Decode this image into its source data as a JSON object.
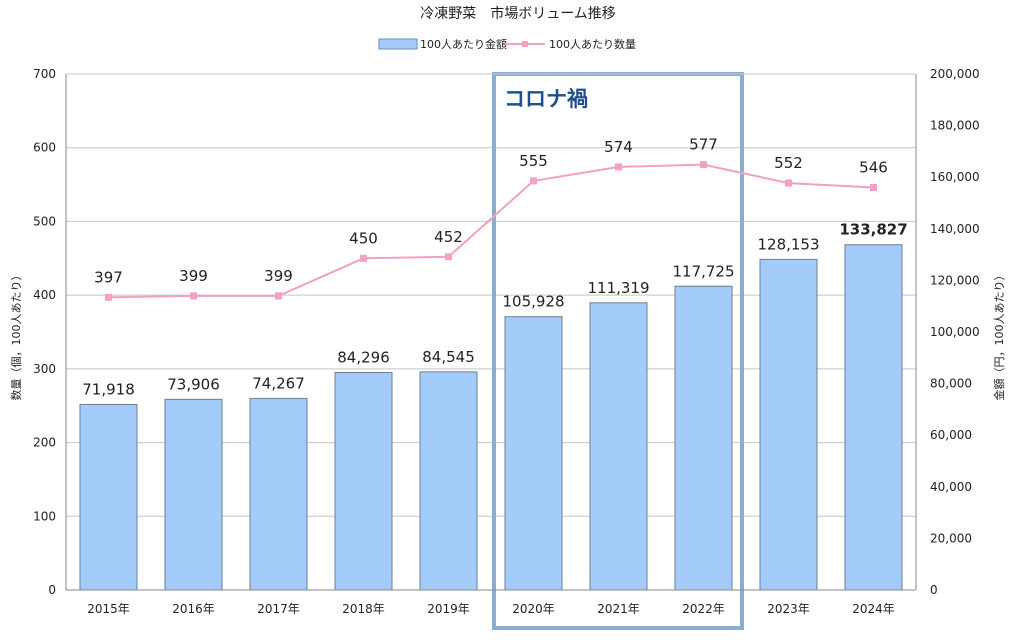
{
  "chart_data": {
    "type": "bar",
    "title": "冷凍野菜　市場ボリューム推移",
    "categories": [
      "2015年",
      "2016年",
      "2017年",
      "2018年",
      "2019年",
      "2020年",
      "2021年",
      "2022年",
      "2023年",
      "2024年"
    ],
    "series": [
      {
        "name": "100人あたり金額",
        "type": "bar",
        "axis": "right",
        "values": [
          71918,
          73906,
          74267,
          84296,
          84545,
          105928,
          111319,
          117725,
          128153,
          133827
        ],
        "labels": [
          "71,918",
          "73,906",
          "74,267",
          "84,296",
          "84,545",
          "105,928",
          "111,319",
          "117,725",
          "128,153",
          "133,827"
        ],
        "color": "#a3ccfb",
        "highlight_last_color": "#e8141b"
      },
      {
        "name": "100人あたり数量",
        "type": "line",
        "axis": "left",
        "values": [
          397,
          399,
          399,
          450,
          452,
          555,
          574,
          577,
          552,
          546
        ],
        "labels": [
          "397",
          "399",
          "399",
          "450",
          "452",
          "555",
          "574",
          "577",
          "552",
          "546"
        ],
        "color": "#f39fc6"
      }
    ],
    "left_axis": {
      "label": "数量（個，100人あたり）",
      "min": 0,
      "max": 700,
      "ticks": [
        "0",
        "100",
        "200",
        "300",
        "400",
        "500",
        "600",
        "700"
      ],
      "tick_values": [
        0,
        100,
        200,
        300,
        400,
        500,
        600,
        700
      ]
    },
    "right_axis": {
      "label": "金額（円，100人あたり）",
      "min": 0,
      "max": 200000,
      "ticks": [
        "0",
        "20,000",
        "40,000",
        "60,000",
        "80,000",
        "100,000",
        "120,000",
        "140,000",
        "160,000",
        "180,000",
        "200,000"
      ],
      "tick_values": [
        0,
        20000,
        40000,
        60000,
        80000,
        100000,
        120000,
        140000,
        160000,
        180000,
        200000
      ]
    },
    "grid": true,
    "legend_position": "top-center",
    "annotation": {
      "text": "コロナ禍",
      "start_category": "2020年",
      "end_category": "2022年",
      "box_color": "#8aaed1",
      "text_color": "#1f4e8c"
    }
  }
}
